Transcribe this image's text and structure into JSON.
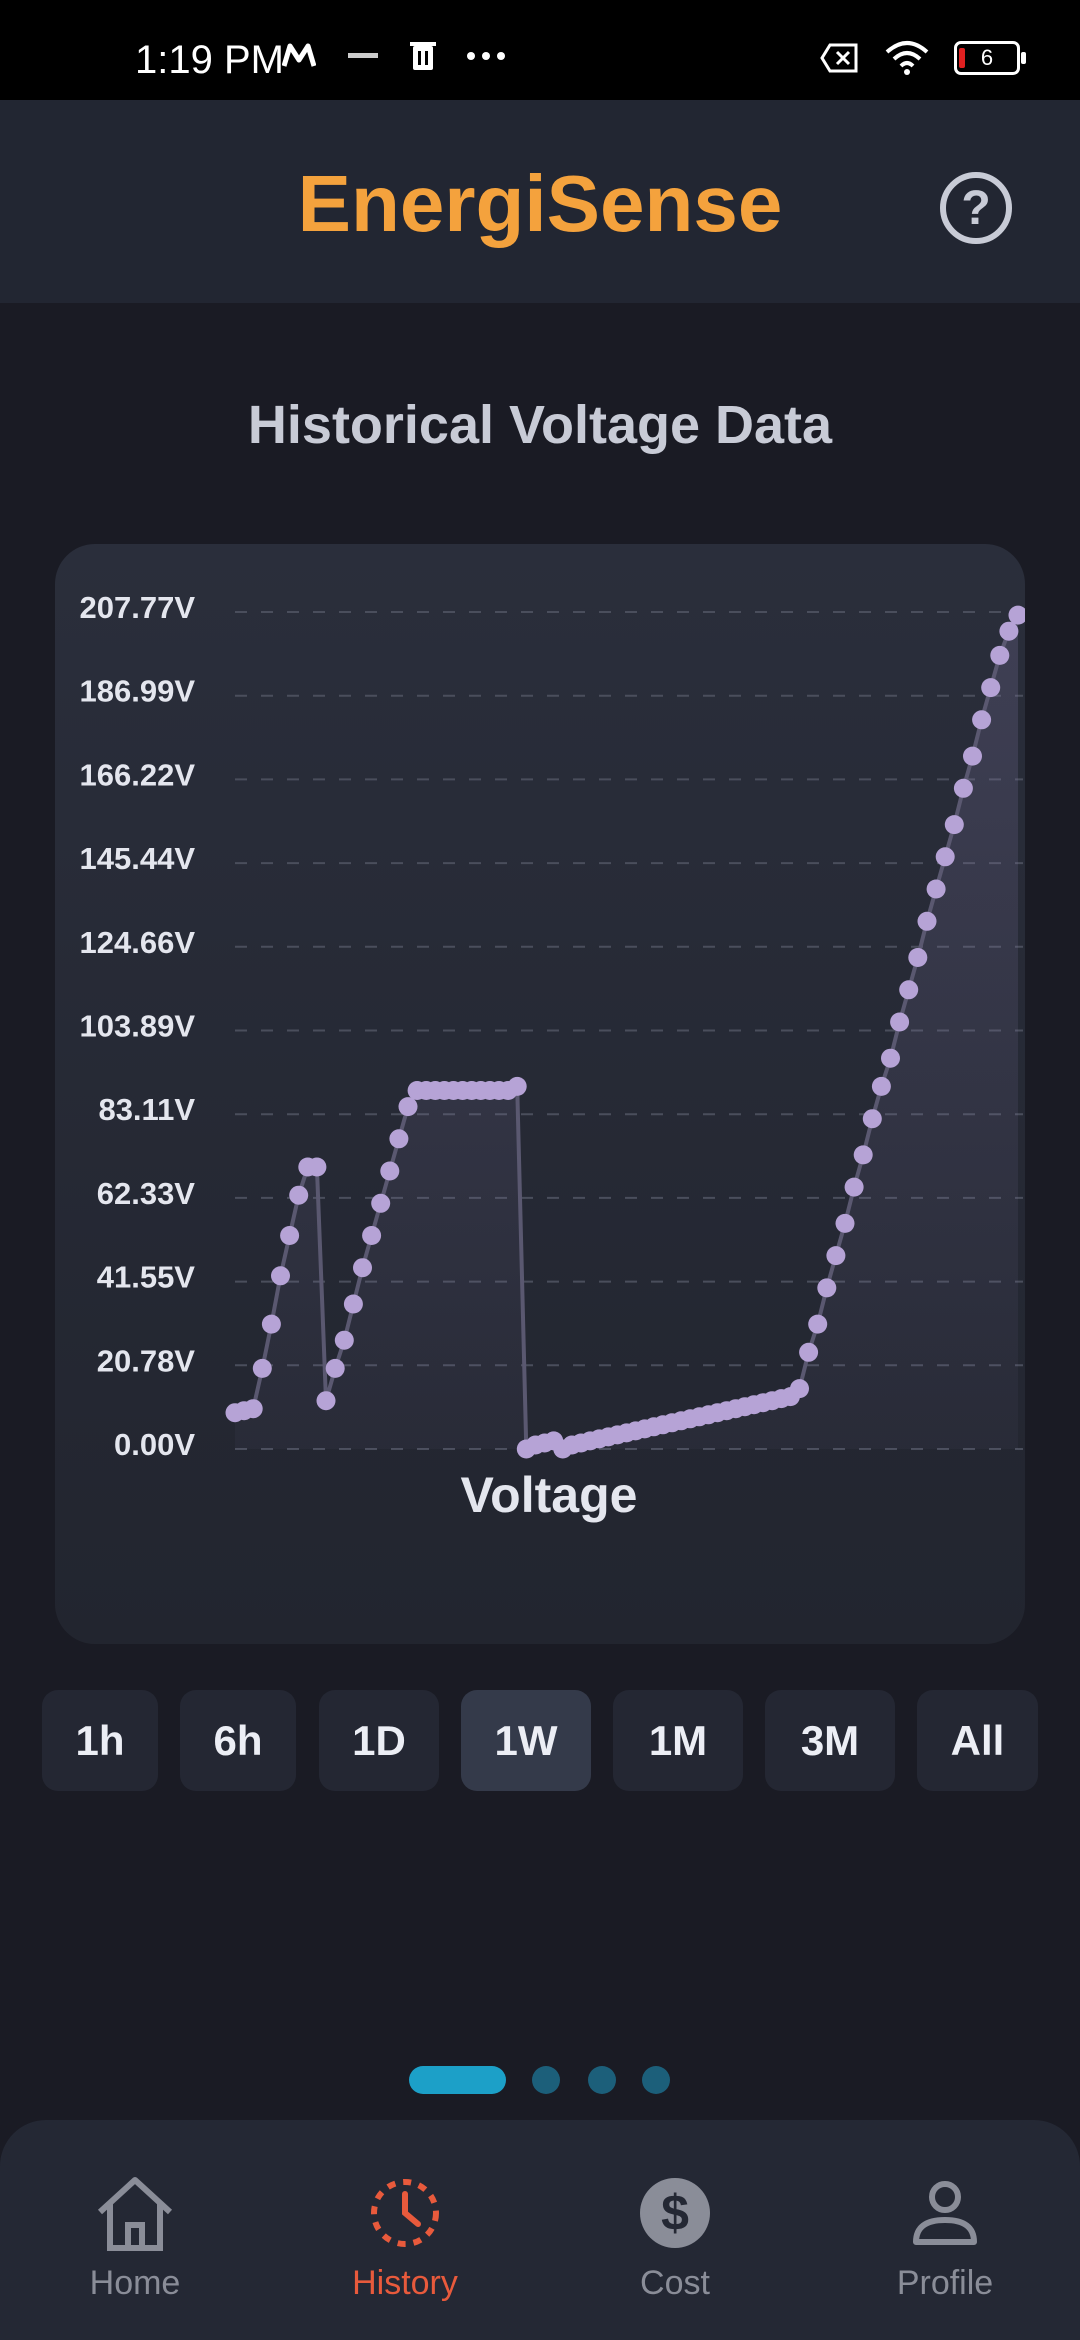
{
  "status_bar": {
    "time": "1:19 PM",
    "battery_level": "6",
    "icons": [
      "m-logo-icon",
      "gear-chip-icon",
      "trash-icon",
      "more-dots-icon",
      "no-sim-icon",
      "wifi-icon",
      "battery-icon"
    ]
  },
  "header": {
    "title": "EnergiSense",
    "help_icon": "help-circle-icon",
    "help_label": "?"
  },
  "section": {
    "title": "Historical Voltage Data"
  },
  "chart_data": {
    "type": "line",
    "xlabel": "Voltage",
    "ylabel": "",
    "ylim": [
      0,
      207.77
    ],
    "y_ticks": [
      "207.77V",
      "186.99V",
      "166.22V",
      "145.44V",
      "124.66V",
      "103.89V",
      "83.11V",
      "62.33V",
      "41.55V",
      "20.78V",
      "0.00V"
    ],
    "y_tick_values": [
      207.77,
      186.99,
      166.22,
      145.44,
      124.66,
      103.89,
      83.11,
      62.33,
      41.55,
      20.78,
      0.0
    ],
    "grid": true,
    "series": [
      {
        "values": [
          9,
          9.5,
          10,
          20,
          31,
          43,
          53,
          63,
          70,
          70,
          12,
          20,
          27,
          36,
          45,
          53,
          61,
          69,
          77,
          85,
          89,
          89,
          89,
          89,
          89,
          89,
          89,
          89,
          89,
          89,
          89,
          90,
          0,
          1,
          1.5,
          2,
          0,
          1,
          1.5,
          2,
          2.5,
          3,
          3.5,
          4,
          4.5,
          5,
          5.5,
          6,
          6.5,
          7,
          7.5,
          8,
          8.5,
          9,
          9.5,
          10,
          10.5,
          11,
          11.5,
          12,
          12.5,
          13,
          15,
          24,
          31,
          40,
          48,
          56,
          65,
          73,
          82,
          90,
          97,
          106,
          114,
          122,
          131,
          139,
          147,
          155,
          164,
          172,
          181,
          189,
          197,
          203,
          207
        ]
      }
    ]
  },
  "ranges": {
    "items": [
      "1h",
      "6h",
      "1D",
      "1W",
      "1M",
      "3M",
      "All"
    ],
    "active": "1W"
  },
  "pager": {
    "count": 4,
    "active_index": 0
  },
  "nav": {
    "items": [
      {
        "label": "Home",
        "icon": "home-icon"
      },
      {
        "label": "History",
        "icon": "history-icon"
      },
      {
        "label": "Cost",
        "icon": "dollar-icon"
      },
      {
        "label": "Profile",
        "icon": "profile-icon"
      }
    ],
    "active": "History",
    "colors": {
      "active": "#e85a3c",
      "inactive": "#8a8d98"
    }
  },
  "colors": {
    "brand": "#f4a23d",
    "line": "#b6a3d6",
    "background": "#1a1b24"
  }
}
